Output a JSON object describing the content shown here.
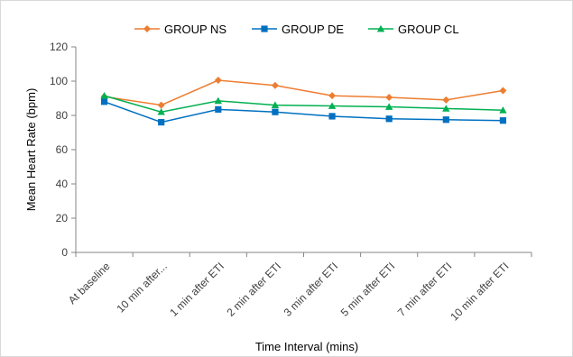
{
  "chart_data": {
    "type": "line",
    "title": "",
    "xlabel": "Time Interval (mins)",
    "ylabel": "Mean Heart Rate (bpm)",
    "ylim": [
      0,
      120
    ],
    "yticks": [
      0,
      20,
      40,
      60,
      80,
      100,
      120
    ],
    "grid": false,
    "legend_position": "top",
    "categories": [
      "At baseline",
      "10 min after...",
      "1 min after ETI",
      "2 min after ETI",
      "3 min after ETI",
      "5 min after ETI",
      "7 min after ETI",
      "10 min after ETI"
    ],
    "series": [
      {
        "name": "GROUP NS",
        "color": "#ED7D31",
        "marker": "diamond",
        "values": [
          91,
          86,
          100.5,
          97.5,
          91.5,
          90.5,
          89,
          94.5
        ]
      },
      {
        "name": "GROUP DE",
        "color": "#0070C0",
        "marker": "square",
        "values": [
          88,
          76,
          83.5,
          82,
          79.5,
          78,
          77.5,
          77
        ]
      },
      {
        "name": "GROUP CL",
        "color": "#00B050",
        "marker": "triangle",
        "values": [
          91.5,
          82,
          88.5,
          86,
          85.5,
          85,
          84,
          83
        ]
      }
    ]
  }
}
